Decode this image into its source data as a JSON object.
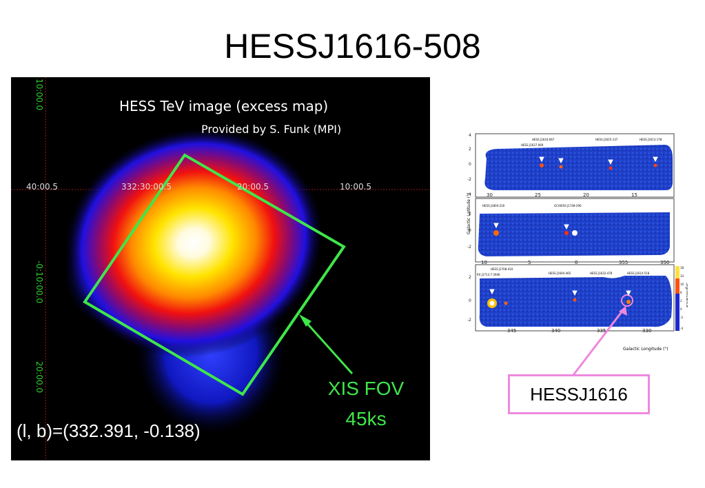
{
  "slide": {
    "title": "HESSJ1616-508"
  },
  "tev_map": {
    "caption": "HESS TeV image (excess map)",
    "credit": "Provided by S. Funk (MPI)",
    "ra_ticks": [
      "40:00.5",
      "332:30:00.5",
      "20:00.5",
      "10:00.5"
    ],
    "dec_ticks": [
      "10:00.0",
      "-0:10:00.0",
      "20:00.0"
    ],
    "fov_label_line1": "XIS FOV",
    "fov_label_line2": "45ks",
    "coordinates": "(l, b)=(332.391, -0.138)",
    "fov_color": "#3fe64a"
  },
  "survey": {
    "callout": "HESSJ1616",
    "panel1_x_ticks": [
      "30",
      "25",
      "20",
      "15"
    ],
    "panel2_x_ticks": [
      "10",
      "5",
      "0",
      "355",
      "350"
    ],
    "panel3_x_ticks": [
      "345",
      "340",
      "335",
      "330"
    ],
    "y_ticks": [
      "4",
      "2",
      "0",
      "-2",
      "-4"
    ],
    "ylabel": "Galactic Latitude (°)",
    "xlabel": "Galactic Longitude (°)",
    "colorbar_label": "Significance",
    "colorbar_ticks": [
      "18",
      "16",
      "14",
      "12",
      "10",
      "8",
      "6",
      "4",
      "2",
      "0",
      "-2",
      "-4"
    ],
    "panel1_sources": [
      "HESS J1634-067",
      "HESS J1637-069",
      "HESS J1625-137",
      "HESS J1613-178"
    ],
    "panel2_sources": [
      "HESS J1804-216",
      "GC/HESS J1748-290"
    ],
    "panel3_sources": [
      "HESS J1708-410",
      "RX J1713.7-3946",
      "HESS J1640-465",
      "HESS J1632-478",
      "HESS J1614-518"
    ],
    "callout_border_color": "#ee88dd"
  }
}
